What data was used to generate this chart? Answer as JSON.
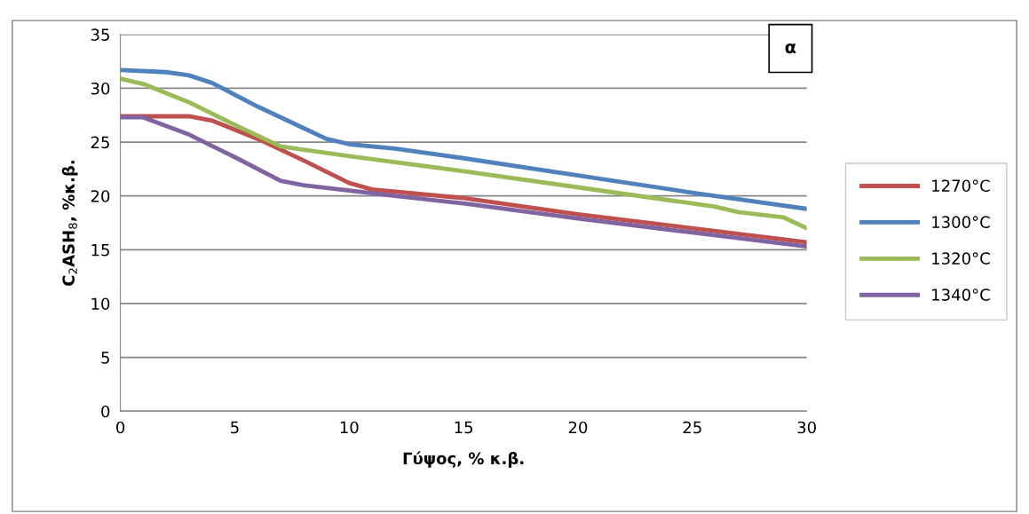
{
  "chart_data": {
    "type": "line",
    "xlabel": "Γύψος, % κ.β.",
    "ylabel": "C$_{2}$ASH$_{8}$, %κ.β.",
    "annotations": [
      "α"
    ],
    "xlim": [
      0,
      30
    ],
    "xticks": [
      0,
      5,
      10,
      15,
      20,
      25,
      30
    ],
    "ylim": [
      0,
      35
    ],
    "yticks": [
      0,
      5,
      10,
      15,
      20,
      25,
      30,
      35
    ],
    "grid": "y",
    "legend": "right",
    "marker": "none",
    "line_style": "solid",
    "series": [
      {
        "name": "1270°C",
        "color": "#c0504d",
        "x": [
          0,
          1,
          3,
          4,
          6,
          8,
          10,
          11,
          15,
          20,
          25,
          30
        ],
        "values": [
          27.4,
          27.4,
          27.4,
          27.0,
          25.3,
          23.3,
          21.2,
          20.6,
          19.8,
          18.3,
          17.0,
          15.7
        ]
      },
      {
        "name": "1300°C",
        "color": "#4f81bd",
        "x": [
          0,
          2,
          3,
          4,
          6,
          8,
          9,
          10,
          12,
          15,
          20,
          25,
          27,
          30
        ],
        "values": [
          31.7,
          31.5,
          31.2,
          30.5,
          28.3,
          26.3,
          25.3,
          24.8,
          24.4,
          23.5,
          21.9,
          20.3,
          19.7,
          18.8
        ]
      },
      {
        "name": "1320°C",
        "color": "#9bbb59",
        "x": [
          0,
          1,
          3,
          5,
          7,
          8,
          10,
          15,
          20,
          25,
          26,
          27,
          29,
          30
        ],
        "values": [
          30.9,
          30.4,
          28.7,
          26.6,
          24.6,
          24.3,
          23.7,
          22.3,
          20.8,
          19.3,
          19.0,
          18.5,
          18.0,
          17.0
        ]
      },
      {
        "name": "1340°C",
        "color": "#8064a2",
        "x": [
          0,
          1,
          3,
          5,
          7,
          8,
          10,
          12,
          15,
          20,
          25,
          30
        ],
        "values": [
          27.3,
          27.3,
          25.7,
          23.6,
          21.4,
          21.0,
          20.5,
          20.0,
          19.3,
          17.9,
          16.6,
          15.3
        ]
      }
    ]
  }
}
